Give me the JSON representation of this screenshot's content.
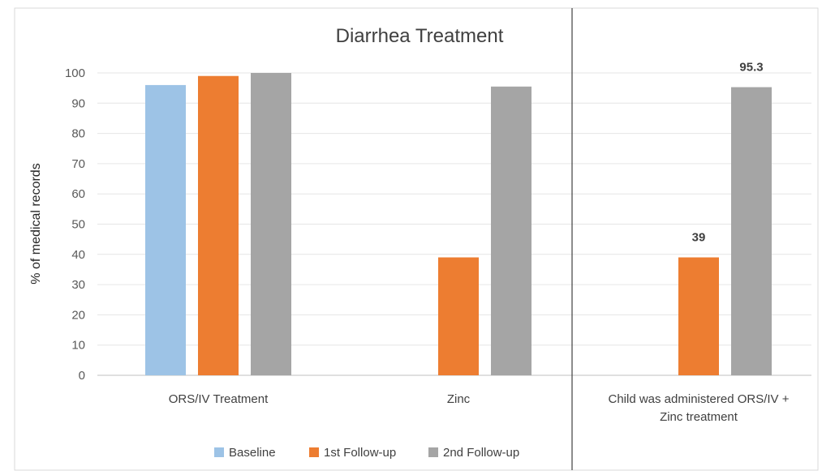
{
  "chart_data": {
    "type": "bar",
    "title": "Diarrhea Treatment",
    "ylabel": "% of medical records",
    "xlabel": "",
    "ylim": [
      0,
      100
    ],
    "yticks": [
      0,
      10,
      20,
      30,
      40,
      50,
      60,
      70,
      80,
      90,
      100
    ],
    "grid": true,
    "legend_position": "bottom",
    "categories": [
      "ORS/IV Treatment",
      "Zinc",
      "Child was administered ORS/IV + Zinc treatment"
    ],
    "category_label_lines": [
      [
        "ORS/IV Treatment"
      ],
      [
        "Zinc"
      ],
      [
        "Child was administered ORS/IV +",
        "Zinc treatment"
      ]
    ],
    "series": [
      {
        "name": "Baseline",
        "color": "#9dc3e6",
        "values": [
          96,
          null,
          null
        ]
      },
      {
        "name": "1st Follow-up",
        "color": "#ed7d31",
        "values": [
          99,
          39,
          39
        ]
      },
      {
        "name": "2nd Follow-up",
        "color": "#a5a5a5",
        "values": [
          100,
          95.5,
          95.3
        ]
      }
    ],
    "data_labels": [
      {
        "category_index": 2,
        "series_index": 1,
        "text": "39"
      },
      {
        "category_index": 2,
        "series_index": 2,
        "text": "95.3"
      }
    ]
  }
}
